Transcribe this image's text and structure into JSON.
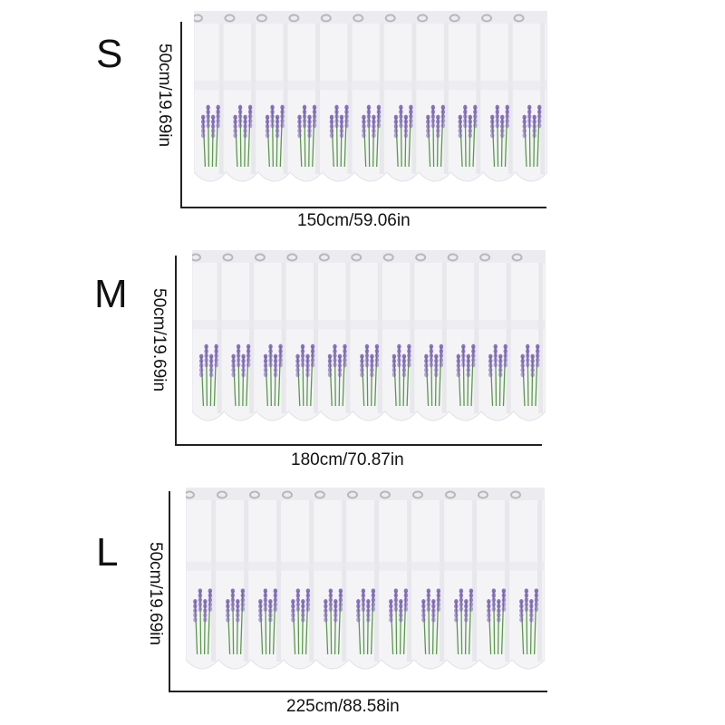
{
  "sizes": [
    {
      "size": "S",
      "height": "50cm/19.69in",
      "width": "150cm/59.06in"
    },
    {
      "size": "M",
      "height": "50cm/19.69in",
      "width": "180cm/70.87in"
    },
    {
      "size": "L",
      "height": "50cm/19.69in",
      "width": "225cm/88.58in"
    }
  ],
  "colors": {
    "fabric": "#f4f4f7",
    "fold_shadow": "#dcdce3",
    "lavender": "#7a5bb8",
    "stem": "#5a9a4a",
    "grommet": "#b8b8bc",
    "axis": "#222222"
  }
}
